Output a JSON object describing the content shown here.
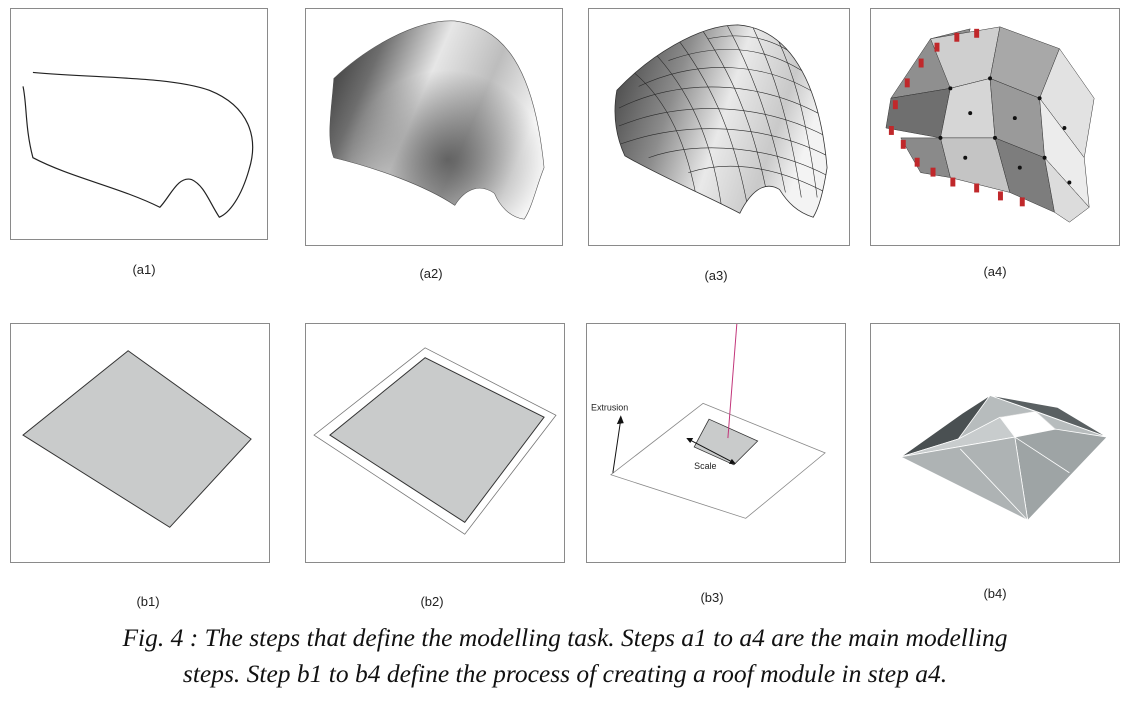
{
  "panels": {
    "a1": "(a1)",
    "a2": "(a2)",
    "a3": "(a3)",
    "a4": "(a4)",
    "b1": "(b1)",
    "b2": "(b2)",
    "b3": "(b3)",
    "b4": "(b4)"
  },
  "annotations": {
    "extrusion": "Extrusion",
    "scale": "Scale"
  },
  "caption": {
    "line1": "Fig. 4 : The steps that define the modelling task. Steps a1 to a4 are the main modelling",
    "line2": "steps. Step b1 to b4 define the process of creating a roof module in step a4."
  }
}
